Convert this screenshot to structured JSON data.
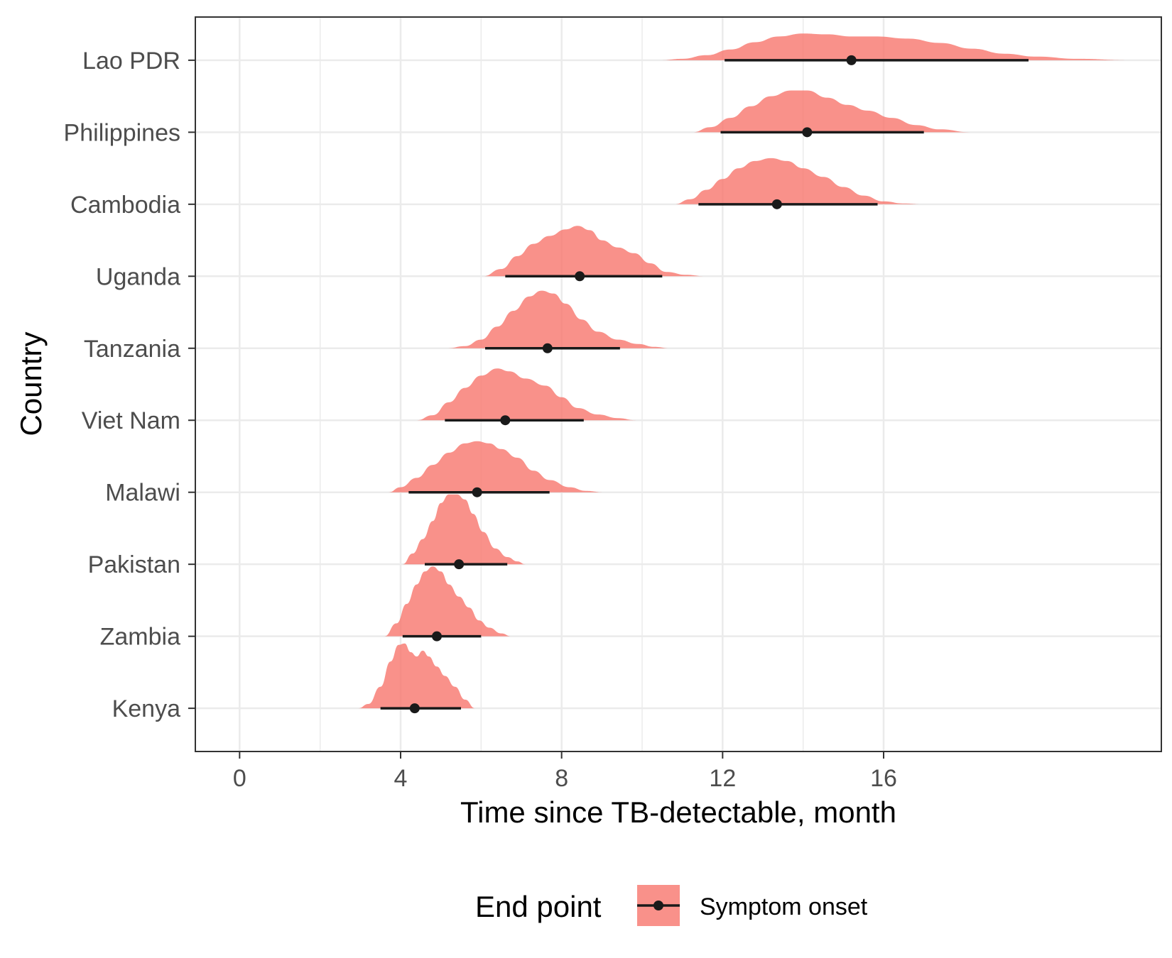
{
  "chart_data": {
    "type": "ridgeline",
    "xlabel": "Time since TB-detectable, month",
    "ylabel": "Country",
    "xlim": [
      -1.1,
      22.9
    ],
    "xticks": [
      0,
      4,
      8,
      12,
      16
    ],
    "grid": true,
    "legend": {
      "position": "bottom",
      "title": "End point",
      "entries": [
        "Symptom onset"
      ]
    },
    "colors": {
      "density": "#f8766d",
      "interval": "#1a1a1a",
      "grid": "#ebebeb",
      "panel_border": "#333333"
    },
    "categories": [
      "Kenya",
      "Zambia",
      "Pakistan",
      "Malawi",
      "Viet Nam",
      "Tanzania",
      "Uganda",
      "Cambodia",
      "Philippines",
      "Lao PDR"
    ],
    "series": [
      {
        "country": "Kenya",
        "median": 4.35,
        "interval": [
          3.5,
          5.5
        ],
        "density_range": [
          2.95,
          5.85
        ],
        "density": [
          [
            2.95,
            0.0
          ],
          [
            3.2,
            0.06
          ],
          [
            3.5,
            0.3
          ],
          [
            3.75,
            0.65
          ],
          [
            3.95,
            0.88
          ],
          [
            4.1,
            0.9
          ],
          [
            4.25,
            0.78
          ],
          [
            4.4,
            0.72
          ],
          [
            4.55,
            0.8
          ],
          [
            4.7,
            0.72
          ],
          [
            4.9,
            0.58
          ],
          [
            5.1,
            0.45
          ],
          [
            5.35,
            0.3
          ],
          [
            5.6,
            0.12
          ],
          [
            5.85,
            0.0
          ]
        ]
      },
      {
        "country": "Zambia",
        "median": 4.9,
        "interval": [
          4.05,
          6.0
        ],
        "density_range": [
          3.6,
          6.75
        ],
        "density": [
          [
            3.6,
            0.0
          ],
          [
            3.9,
            0.18
          ],
          [
            4.15,
            0.45
          ],
          [
            4.4,
            0.72
          ],
          [
            4.6,
            0.9
          ],
          [
            4.8,
            0.97
          ],
          [
            5.0,
            0.9
          ],
          [
            5.2,
            0.72
          ],
          [
            5.45,
            0.55
          ],
          [
            5.7,
            0.4
          ],
          [
            5.95,
            0.22
          ],
          [
            6.2,
            0.12
          ],
          [
            6.5,
            0.04
          ],
          [
            6.75,
            0.0
          ]
        ]
      },
      {
        "country": "Pakistan",
        "median": 5.45,
        "interval": [
          4.6,
          6.65
        ],
        "density_range": [
          4.05,
          7.1
        ],
        "density": [
          [
            4.05,
            0.0
          ],
          [
            4.3,
            0.15
          ],
          [
            4.55,
            0.35
          ],
          [
            4.8,
            0.6
          ],
          [
            5.0,
            0.85
          ],
          [
            5.2,
            0.97
          ],
          [
            5.4,
            0.97
          ],
          [
            5.6,
            0.9
          ],
          [
            5.8,
            0.7
          ],
          [
            6.05,
            0.45
          ],
          [
            6.35,
            0.22
          ],
          [
            6.65,
            0.1
          ],
          [
            6.9,
            0.04
          ],
          [
            7.1,
            0.0
          ]
        ]
      },
      {
        "country": "Malawi",
        "median": 5.9,
        "interval": [
          4.2,
          7.7
        ],
        "density_range": [
          3.7,
          9.05
        ],
        "density": [
          [
            3.7,
            0.0
          ],
          [
            4.0,
            0.07
          ],
          [
            4.4,
            0.2
          ],
          [
            4.8,
            0.38
          ],
          [
            5.2,
            0.55
          ],
          [
            5.6,
            0.68
          ],
          [
            5.9,
            0.71
          ],
          [
            6.2,
            0.68
          ],
          [
            6.5,
            0.6
          ],
          [
            6.9,
            0.48
          ],
          [
            7.3,
            0.3
          ],
          [
            7.7,
            0.17
          ],
          [
            8.2,
            0.07
          ],
          [
            8.6,
            0.02
          ],
          [
            9.05,
            0.0
          ]
        ]
      },
      {
        "country": "Viet Nam",
        "median": 6.6,
        "interval": [
          5.1,
          8.55
        ],
        "density_range": [
          4.4,
          9.85
        ],
        "density": [
          [
            4.4,
            0.0
          ],
          [
            4.8,
            0.07
          ],
          [
            5.2,
            0.25
          ],
          [
            5.6,
            0.45
          ],
          [
            6.0,
            0.62
          ],
          [
            6.4,
            0.72
          ],
          [
            6.7,
            0.68
          ],
          [
            7.1,
            0.58
          ],
          [
            7.6,
            0.48
          ],
          [
            8.0,
            0.32
          ],
          [
            8.4,
            0.17
          ],
          [
            8.9,
            0.08
          ],
          [
            9.4,
            0.03
          ],
          [
            9.85,
            0.0
          ]
        ]
      },
      {
        "country": "Tanzania",
        "median": 7.65,
        "interval": [
          6.1,
          9.45
        ],
        "density_range": [
          5.15,
          10.7
        ],
        "density": [
          [
            5.15,
            0.0
          ],
          [
            5.6,
            0.03
          ],
          [
            6.0,
            0.12
          ],
          [
            6.4,
            0.3
          ],
          [
            6.8,
            0.52
          ],
          [
            7.2,
            0.72
          ],
          [
            7.5,
            0.8
          ],
          [
            7.8,
            0.76
          ],
          [
            8.1,
            0.62
          ],
          [
            8.5,
            0.4
          ],
          [
            8.9,
            0.23
          ],
          [
            9.4,
            0.12
          ],
          [
            9.9,
            0.06
          ],
          [
            10.3,
            0.02
          ],
          [
            10.7,
            0.0
          ]
        ]
      },
      {
        "country": "Uganda",
        "median": 8.45,
        "interval": [
          6.6,
          10.5
        ],
        "density_range": [
          6.05,
          11.55
        ],
        "density": [
          [
            6.05,
            0.0
          ],
          [
            6.5,
            0.1
          ],
          [
            6.9,
            0.28
          ],
          [
            7.3,
            0.45
          ],
          [
            7.7,
            0.56
          ],
          [
            8.1,
            0.65
          ],
          [
            8.4,
            0.7
          ],
          [
            8.7,
            0.64
          ],
          [
            9.0,
            0.5
          ],
          [
            9.4,
            0.4
          ],
          [
            9.8,
            0.32
          ],
          [
            10.2,
            0.18
          ],
          [
            10.6,
            0.06
          ],
          [
            11.1,
            0.02
          ],
          [
            11.55,
            0.0
          ]
        ]
      },
      {
        "country": "Cambodia",
        "median": 13.35,
        "interval": [
          11.4,
          15.85
        ],
        "density_range": [
          10.8,
          16.95
        ],
        "density": [
          [
            10.8,
            0.0
          ],
          [
            11.2,
            0.07
          ],
          [
            11.6,
            0.2
          ],
          [
            12.0,
            0.35
          ],
          [
            12.4,
            0.5
          ],
          [
            12.8,
            0.6
          ],
          [
            13.2,
            0.64
          ],
          [
            13.6,
            0.6
          ],
          [
            14.0,
            0.5
          ],
          [
            14.5,
            0.38
          ],
          [
            15.0,
            0.24
          ],
          [
            15.5,
            0.12
          ],
          [
            16.0,
            0.04
          ],
          [
            16.5,
            0.01
          ],
          [
            16.95,
            0.0
          ]
        ]
      },
      {
        "country": "Philippines",
        "median": 14.1,
        "interval": [
          11.95,
          17.0
        ],
        "density_range": [
          11.25,
          18.15
        ],
        "density": [
          [
            11.25,
            0.0
          ],
          [
            11.7,
            0.07
          ],
          [
            12.2,
            0.2
          ],
          [
            12.7,
            0.36
          ],
          [
            13.2,
            0.5
          ],
          [
            13.7,
            0.58
          ],
          [
            14.1,
            0.58
          ],
          [
            14.6,
            0.48
          ],
          [
            15.1,
            0.38
          ],
          [
            15.6,
            0.3
          ],
          [
            16.2,
            0.2
          ],
          [
            16.8,
            0.1
          ],
          [
            17.4,
            0.04
          ],
          [
            18.15,
            0.0
          ]
        ]
      },
      {
        "country": "Lao PDR",
        "median": 15.2,
        "interval": [
          12.05,
          19.6
        ],
        "density_range": [
          10.45,
          22.1
        ],
        "density": [
          [
            10.45,
            0.0
          ],
          [
            11.0,
            0.02
          ],
          [
            11.6,
            0.07
          ],
          [
            12.2,
            0.15
          ],
          [
            12.8,
            0.25
          ],
          [
            13.4,
            0.33
          ],
          [
            14.0,
            0.37
          ],
          [
            14.6,
            0.36
          ],
          [
            15.2,
            0.33
          ],
          [
            15.8,
            0.33
          ],
          [
            16.6,
            0.3
          ],
          [
            17.4,
            0.24
          ],
          [
            18.2,
            0.16
          ],
          [
            19.0,
            0.09
          ],
          [
            19.8,
            0.05
          ],
          [
            20.8,
            0.02
          ],
          [
            22.1,
            0.0
          ]
        ]
      }
    ]
  }
}
